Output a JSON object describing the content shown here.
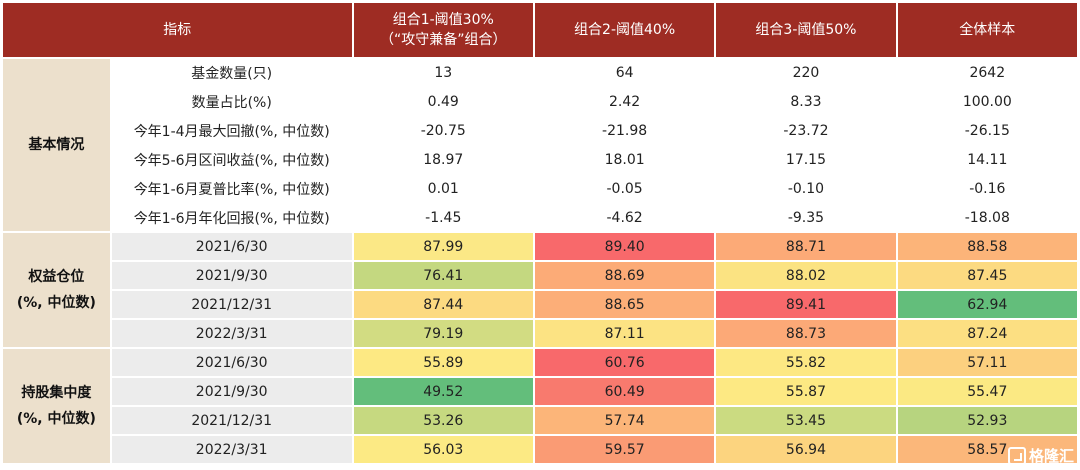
{
  "header": {
    "col0": "指标",
    "col1_line1": "组合1-阈值30%",
    "col1_line2": "（“攻守兼备”组合）",
    "col2": "组合2-阈值40%",
    "col3": "组合3-阈值50%",
    "col4": "全体样本"
  },
  "sections": [
    {
      "category_lines": [
        "基本情况"
      ],
      "rows": [
        {
          "label": "基金数量(只)",
          "values": [
            "13",
            "64",
            "220",
            "2642"
          ]
        },
        {
          "label": "数量占比(%)",
          "values": [
            "0.49",
            "2.42",
            "8.33",
            "100.00"
          ]
        },
        {
          "label": "今年1-4月最大回撤(%, 中位数)",
          "values": [
            "-20.75",
            "-21.98",
            "-23.72",
            "-26.15"
          ]
        },
        {
          "label": "今年5-6月区间收益(%, 中位数)",
          "values": [
            "18.97",
            "18.01",
            "17.15",
            "14.11"
          ]
        },
        {
          "label": "今年1-6月夏普比率(%, 中位数)",
          "values": [
            "0.01",
            "-0.05",
            "-0.10",
            "-0.16"
          ]
        },
        {
          "label": "今年1-6月年化回报(%, 中位数)",
          "values": [
            "-1.45",
            "-4.62",
            "-9.35",
            "-18.08"
          ]
        }
      ]
    },
    {
      "category_lines": [
        "权益仓位",
        "(%, 中位数)"
      ],
      "rows": [
        {
          "label": "2021/6/30",
          "values": [
            "87.99",
            "89.40",
            "88.71",
            "88.58"
          ],
          "colors": [
            "#fbe886",
            "#f8696b",
            "#fcaa77",
            "#fcb479"
          ]
        },
        {
          "label": "2021/9/30",
          "values": [
            "76.41",
            "88.69",
            "88.02",
            "87.45"
          ],
          "colors": [
            "#c4d880",
            "#fcab77",
            "#fbe382",
            "#fcda81"
          ]
        },
        {
          "label": "2021/12/31",
          "values": [
            "87.44",
            "88.65",
            "89.41",
            "62.94"
          ],
          "colors": [
            "#fcda81",
            "#fcae78",
            "#f8696b",
            "#63be7b"
          ]
        },
        {
          "label": "2022/3/31",
          "values": [
            "79.19",
            "87.11",
            "88.73",
            "87.24"
          ],
          "colors": [
            "#d2dc82",
            "#fce383",
            "#fca977",
            "#fcdf82"
          ]
        }
      ]
    },
    {
      "category_lines": [
        "持股集中度",
        "(%, 中位数)"
      ],
      "rows": [
        {
          "label": "2021/6/30",
          "values": [
            "55.89",
            "60.76",
            "55.82",
            "57.11"
          ],
          "colors": [
            "#fde983",
            "#f8696b",
            "#fde883",
            "#fcd07f"
          ]
        },
        {
          "label": "2021/9/30",
          "values": [
            "49.52",
            "60.49",
            "55.87",
            "55.47"
          ],
          "colors": [
            "#63be7b",
            "#f87a6e",
            "#fde983",
            "#fbe983"
          ]
        },
        {
          "label": "2021/12/31",
          "values": [
            "53.26",
            "57.74",
            "53.45",
            "52.93"
          ],
          "colors": [
            "#c6d980",
            "#fcb579",
            "#cbdb81",
            "#b7d47f"
          ]
        },
        {
          "label": "2022/3/31",
          "values": [
            "56.03",
            "59.57",
            "56.94",
            "58.57"
          ],
          "colors": [
            "#fcea84",
            "#fa9b74",
            "#fcd47f",
            "#fbb77a"
          ]
        }
      ]
    }
  ],
  "watermark": "格隆汇"
}
